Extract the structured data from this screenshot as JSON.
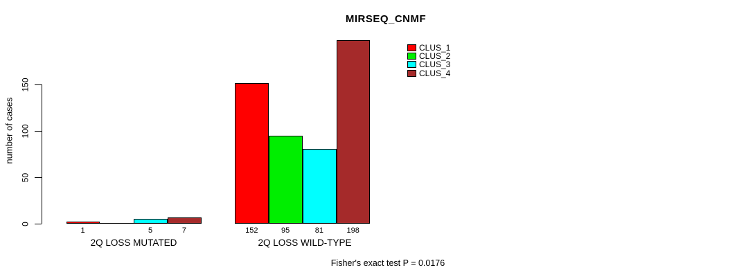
{
  "title": "MIRSEQ_CNMF",
  "chart_data": {
    "type": "bar",
    "title": "MIRSEQ_CNMF",
    "ylabel": "number of cases",
    "xlabel": "",
    "categories": [
      "2Q LOSS MUTATED",
      "2Q LOSS WILD-TYPE"
    ],
    "series": [
      {
        "name": "CLUS_1",
        "color": "#ff0000",
        "values": [
          1,
          152
        ]
      },
      {
        "name": "CLUS_2",
        "color": "#00ee00",
        "values": [
          0,
          95
        ]
      },
      {
        "name": "CLUS_3",
        "color": "#00ffff",
        "values": [
          5,
          81
        ]
      },
      {
        "name": "CLUS_4",
        "color": "#a52a2a",
        "values": [
          7,
          198
        ]
      }
    ],
    "bar_labels": [
      [
        "1",
        "",
        "5",
        "7"
      ],
      [
        "152",
        "95",
        "81",
        "198"
      ]
    ],
    "yticks": [
      0,
      50,
      100,
      150
    ],
    "ylim": [
      0,
      205
    ],
    "grid": false,
    "legend_position": "top-right",
    "annotation": "Fisher's exact test P = 0.0176"
  }
}
